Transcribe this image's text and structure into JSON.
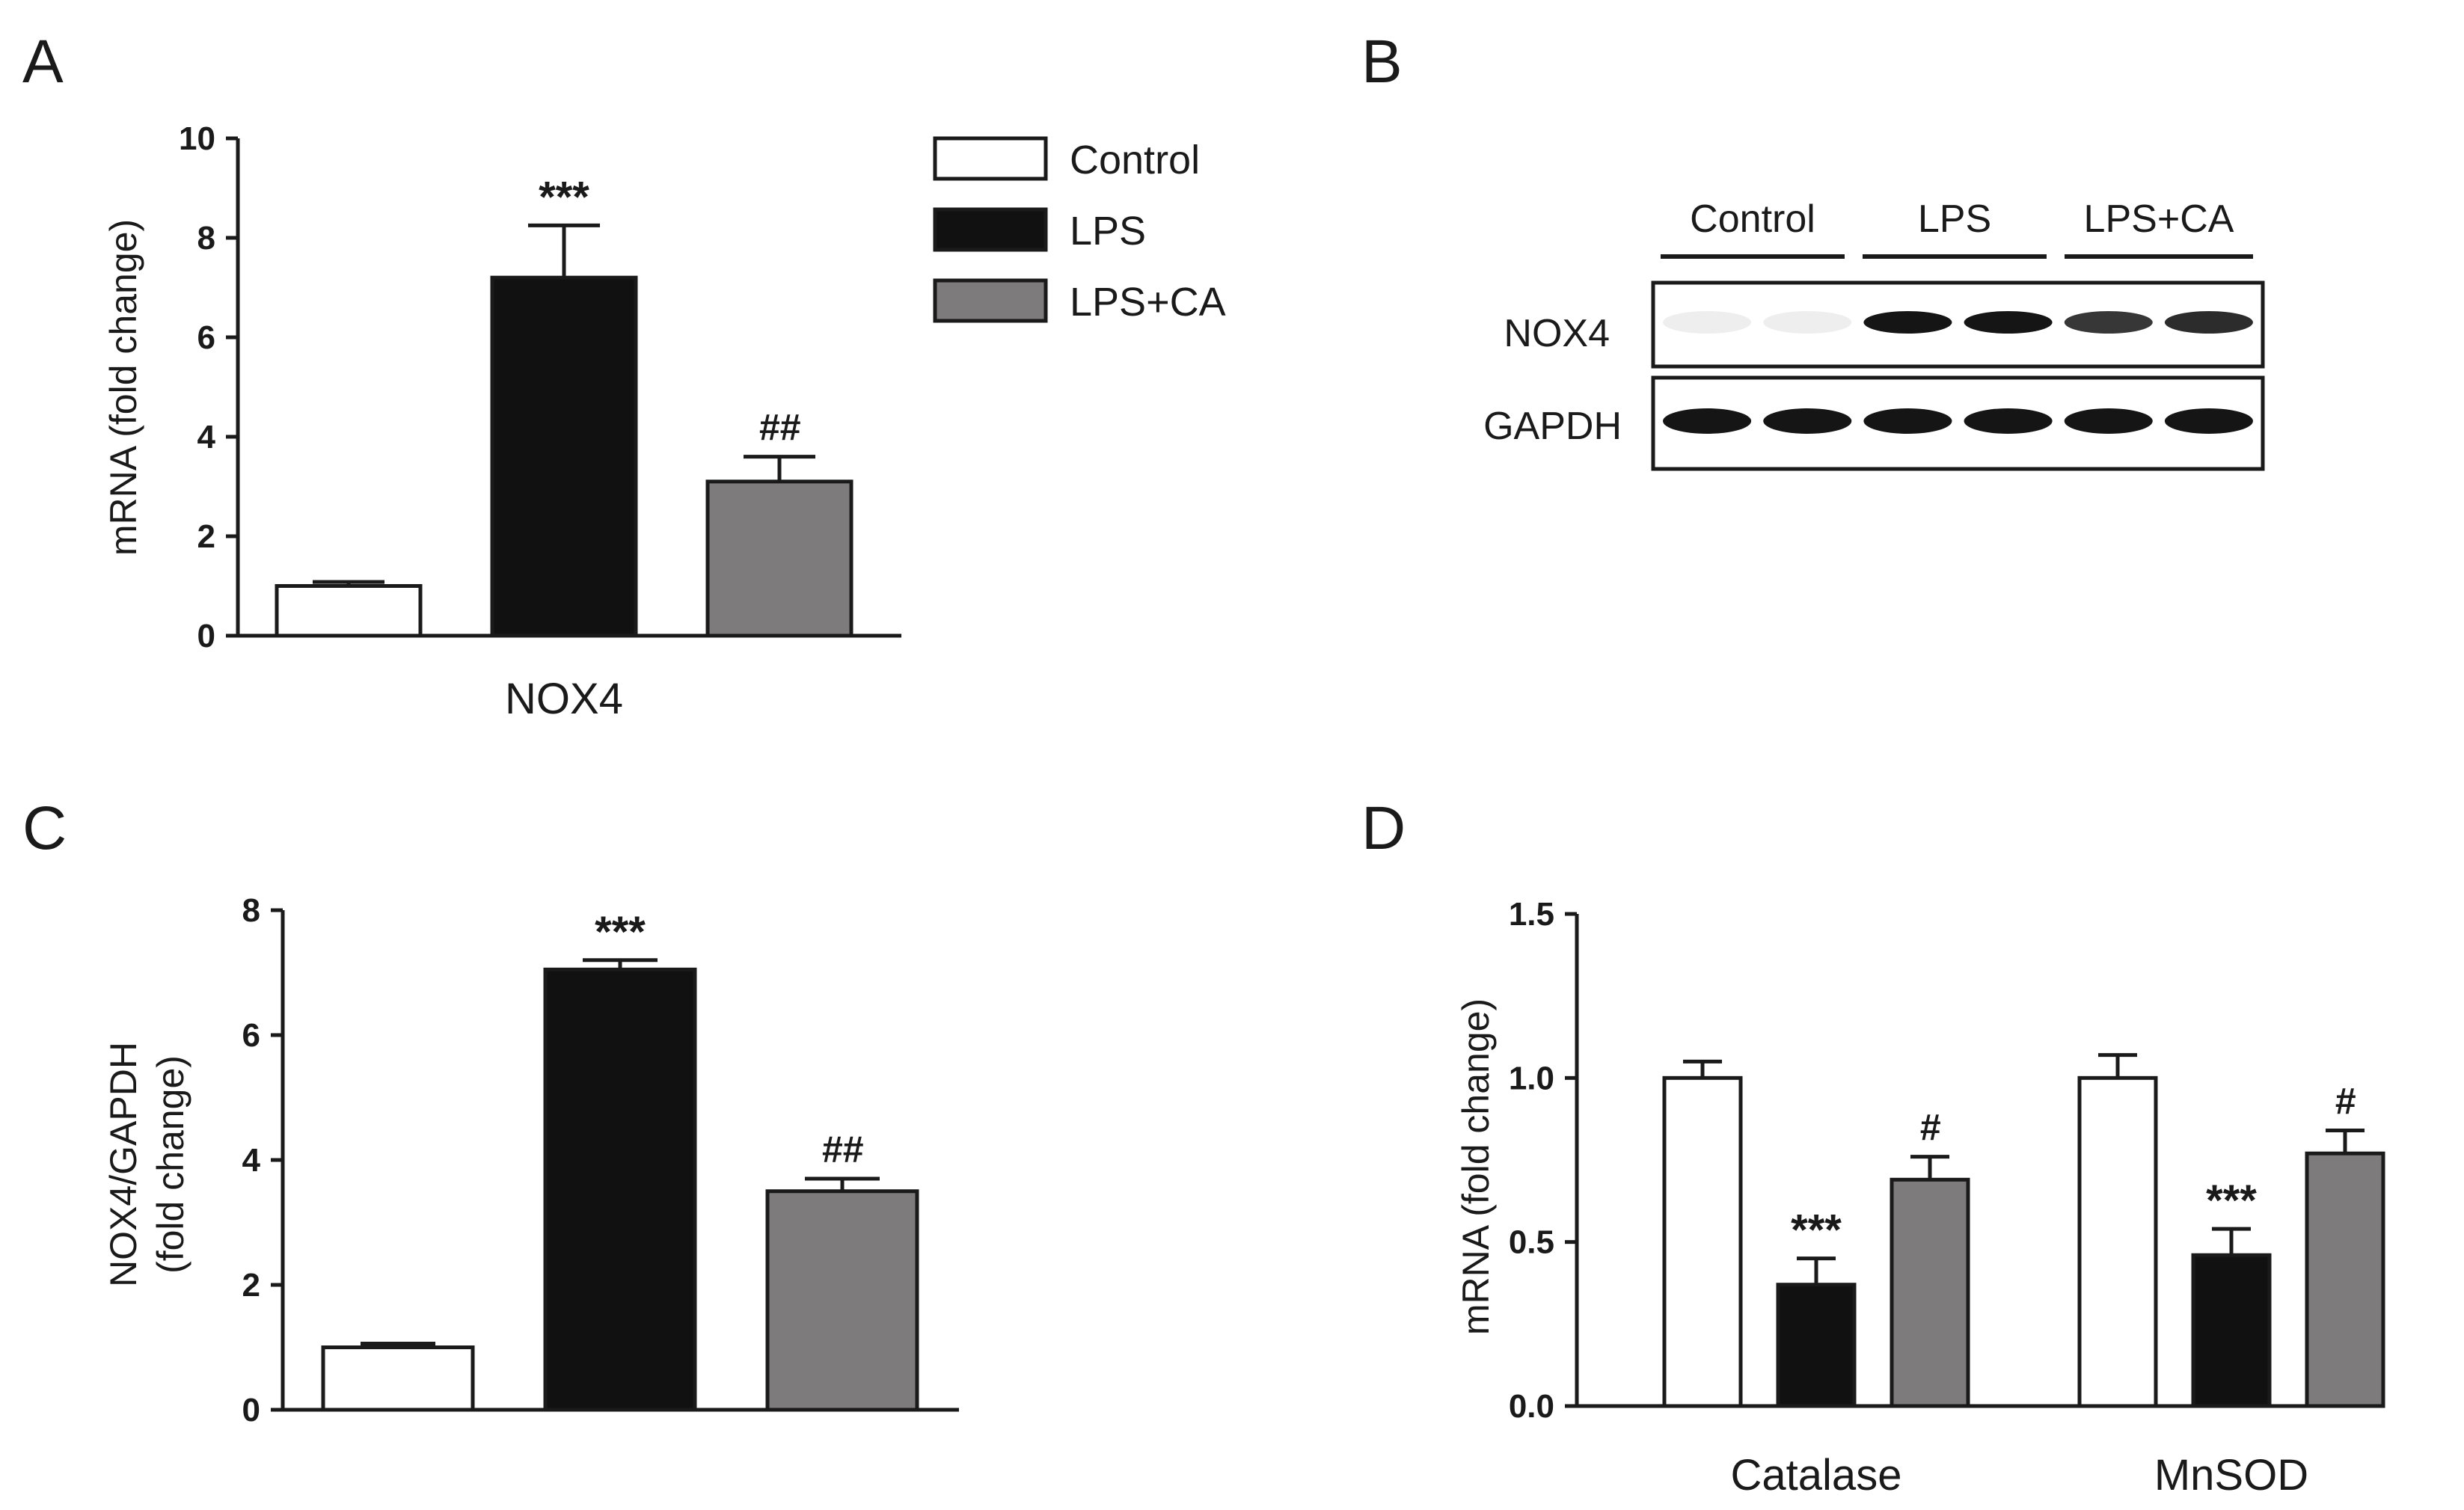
{
  "colors": {
    "Control": "#ffffff",
    "LPS": "#111111",
    "LPS+CA": "#7d7b7b",
    "outline": "#1a1a1a"
  },
  "legend": [
    "Control",
    "LPS",
    "LPS+CA"
  ],
  "panels": {
    "A": "A",
    "B": "B",
    "C": "C",
    "D": "D"
  },
  "blot": {
    "groups": [
      "Control",
      "LPS",
      "LPS+CA"
    ],
    "rows": [
      "NOX4",
      "GAPDH"
    ],
    "lanes_per_group": 2,
    "band_intensity": {
      "NOX4": [
        0.04,
        0.04,
        0.95,
        0.95,
        0.8,
        0.85
      ],
      "GAPDH": [
        0.95,
        0.95,
        0.95,
        0.95,
        0.95,
        0.95
      ]
    }
  },
  "chart_data": [
    {
      "panel": "A",
      "type": "bar",
      "categories": [
        "NOX4"
      ],
      "series": [
        {
          "name": "Control",
          "values": [
            1.0
          ],
          "error": [
            0.08
          ],
          "annotation": ""
        },
        {
          "name": "LPS",
          "values": [
            7.2
          ],
          "error": [
            1.05
          ],
          "annotation": "***"
        },
        {
          "name": "LPS+CA",
          "values": [
            3.1
          ],
          "error": [
            0.5
          ],
          "annotation": "##"
        }
      ],
      "xlabel": "",
      "ylabel": "mRNA (fold change)",
      "ylim": [
        0,
        10
      ],
      "yticks": [
        "0",
        "2",
        "4",
        "6",
        "8",
        "10"
      ]
    },
    {
      "panel": "C",
      "type": "bar",
      "categories": [
        ""
      ],
      "series": [
        {
          "name": "Control",
          "values": [
            1.0
          ],
          "error": [
            0.06
          ],
          "annotation": ""
        },
        {
          "name": "LPS",
          "values": [
            7.05
          ],
          "error": [
            0.15
          ],
          "annotation": "***"
        },
        {
          "name": "LPS+CA",
          "values": [
            3.5
          ],
          "error": [
            0.2
          ],
          "annotation": "##"
        }
      ],
      "xlabel": "",
      "ylabel": [
        "NOX4/GAPDH",
        "(fold change)"
      ],
      "ylim": [
        0,
        8
      ],
      "yticks": [
        "0",
        "2",
        "4",
        "6",
        "8"
      ]
    },
    {
      "panel": "D",
      "type": "bar",
      "categories": [
        "Catalase",
        "MnSOD"
      ],
      "series": [
        {
          "name": "Control",
          "values": [
            1.0,
            1.0
          ],
          "error": [
            0.05,
            0.07
          ],
          "annotation": [
            "",
            ""
          ]
        },
        {
          "name": "LPS",
          "values": [
            0.37,
            0.46
          ],
          "error": [
            0.08,
            0.08
          ],
          "annotation": [
            "***",
            "***"
          ]
        },
        {
          "name": "LPS+CA",
          "values": [
            0.69,
            0.77
          ],
          "error": [
            0.07,
            0.07
          ],
          "annotation": [
            "#",
            "#"
          ]
        }
      ],
      "xlabel": "",
      "ylabel": "mRNA (fold change)",
      "ylim": [
        0,
        1.5
      ],
      "yticks": [
        "0.0",
        "0.5",
        "1.0",
        "1.5"
      ]
    }
  ]
}
